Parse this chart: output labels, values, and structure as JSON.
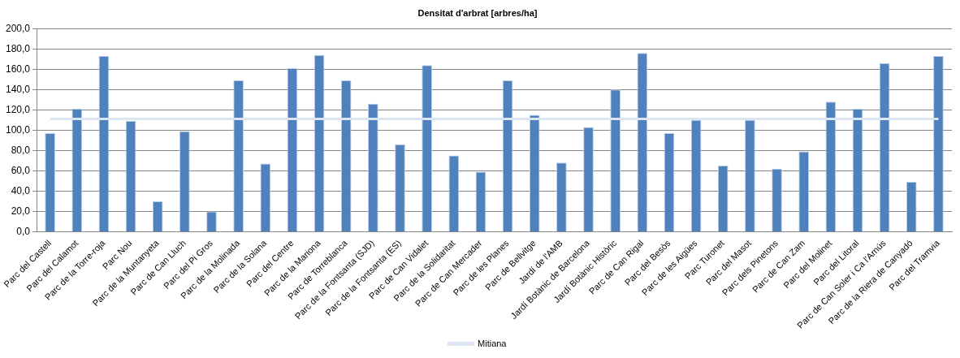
{
  "chart_data": {
    "type": "bar",
    "title": "Densitat d'arbrat [arbres/ha]",
    "categories": [
      "Parc del Castell",
      "Parc del Calamot",
      "Parc de la Torre-roja",
      "Parc Nou",
      "Parc de la Muntanyeta",
      "Parc de Can Lluch",
      "Parc del Pi Gros",
      "Parc de la Molinada",
      "Parc de la Solana",
      "Parc del Centre",
      "Parc de la Mariona",
      "Parc de Torreblanca",
      "Parc de la Fontsanta (SJD)",
      "Parc de la Fontsanta (ES)",
      "Parc de Can Vidalet",
      "Parc de la Solidaritat",
      "Parc de Can Mercader",
      "Parc de les Planes",
      "Parc de Bellvitge",
      "Jardí de l'AMB",
      "Jardí Botànic de Barcelona",
      "Jardí Botànic Històric",
      "Parc de Can Rigal",
      "Parc del Besòs",
      "Parc de les Aigües",
      "Parc Turonet",
      "Parc del Masot",
      "Parc dels Pinetons",
      "Parc de Can Zam",
      "Parc del Molinet",
      "Parc del Litoral",
      "Parc de Can Soler i Ca l'Arnús",
      "Parc de la Riera de Canyadó",
      "Parc del Tramvia"
    ],
    "series": [
      {
        "color": "#4f81bd",
        "values": [
          97,
          121,
          173,
          109,
          30,
          99,
          20,
          149,
          67,
          161,
          174,
          149,
          126,
          86,
          164,
          75,
          59,
          149,
          115,
          68,
          103,
          140,
          176,
          97,
          110,
          65,
          110,
          62,
          79,
          128,
          121,
          166,
          49,
          173
        ]
      },
      {
        "type": "line",
        "name": "Mitiana",
        "color": "#dce6f2",
        "values": [
          111,
          111,
          111,
          111,
          111,
          111,
          111,
          111,
          111,
          111,
          111,
          111,
          111,
          111,
          111,
          111,
          111,
          111,
          111,
          111,
          111,
          111,
          111,
          111,
          111,
          111,
          111,
          111,
          111,
          111,
          111,
          111,
          111,
          111
        ]
      }
    ],
    "ylim": [
      0,
      200
    ],
    "yticks": [
      {
        "value": 0,
        "label": "0,0"
      },
      {
        "value": 20,
        "label": "20,0"
      },
      {
        "value": 40,
        "label": "40,0"
      },
      {
        "value": 60,
        "label": "60,0"
      },
      {
        "value": 80,
        "label": "80,0"
      },
      {
        "value": 100,
        "label": "100,0"
      },
      {
        "value": 120,
        "label": "120,0"
      },
      {
        "value": 140,
        "label": "140,0"
      },
      {
        "value": 160,
        "label": "160,0"
      },
      {
        "value": 180,
        "label": "180,0"
      },
      {
        "value": 200,
        "label": "200,0"
      }
    ],
    "grid": "y",
    "legend": "bottom",
    "marker": "none"
  }
}
